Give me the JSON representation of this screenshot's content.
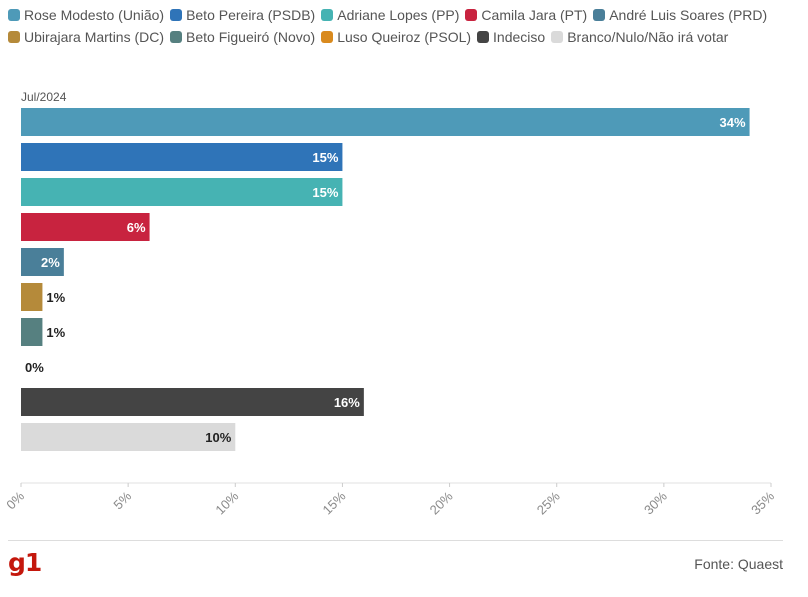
{
  "chart_data": {
    "type": "bar",
    "orientation": "horizontal",
    "period_label": "Jul/2024",
    "xlim": [
      0,
      35
    ],
    "xticks": [
      "0%",
      "5%",
      "10%",
      "15%",
      "20%",
      "25%",
      "30%",
      "35%"
    ],
    "tick_values": [
      0,
      5,
      10,
      15,
      20,
      25,
      30,
      35
    ],
    "series": [
      {
        "name": "Rose Modesto (União)",
        "value": 34,
        "label": "34%",
        "color": "#4e9ab8",
        "label_color": "#ffffff"
      },
      {
        "name": "Beto Pereira (PSDB)",
        "value": 15,
        "label": "15%",
        "color": "#2f74b8",
        "label_color": "#ffffff"
      },
      {
        "name": "Adriane Lopes (PP)",
        "value": 15,
        "label": "15%",
        "color": "#46b3b3",
        "label_color": "#ffffff"
      },
      {
        "name": "Camila Jara (PT)",
        "value": 6,
        "label": "6%",
        "color": "#c8233f",
        "label_color": "#ffffff"
      },
      {
        "name": "André Luis Soares (PRD)",
        "value": 2,
        "label": "2%",
        "color": "#4a7f99",
        "label_color": "#ffffff"
      },
      {
        "name": "Ubirajara Martins (DC)",
        "value": 1,
        "label": "1%",
        "color": "#b58a3a",
        "label_color": "#222222"
      },
      {
        "name": "Beto Figueiró (Novo)",
        "value": 1,
        "label": "1%",
        "color": "#568080",
        "label_color": "#222222"
      },
      {
        "name": "Luso Queiroz (PSOL)",
        "value": 0,
        "label": "0%",
        "color": "#d98a1e",
        "label_color": "#222222"
      },
      {
        "name": "Indeciso",
        "value": 16,
        "label": "16%",
        "color": "#444444",
        "label_color": "#ffffff"
      },
      {
        "name": "Branco/Nulo/Não irá votar",
        "value": 10,
        "label": "10%",
        "color": "#dadada",
        "label_color": "#222222"
      }
    ]
  },
  "footer": {
    "brand": "g1",
    "source": "Fonte: Quaest"
  }
}
